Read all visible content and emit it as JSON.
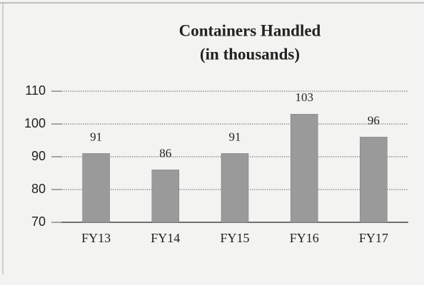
{
  "chart_data": {
    "type": "bar",
    "title": "Containers Handled",
    "subtitle": "(in thousands)",
    "categories": [
      "FY13",
      "FY14",
      "FY15",
      "FY16",
      "FY17"
    ],
    "values": [
      91,
      86,
      91,
      103,
      96
    ],
    "color": "#9a9a9a",
    "ylim": [
      70,
      110
    ],
    "yticks": [
      70,
      80,
      90,
      100,
      110
    ],
    "grid": true
  }
}
